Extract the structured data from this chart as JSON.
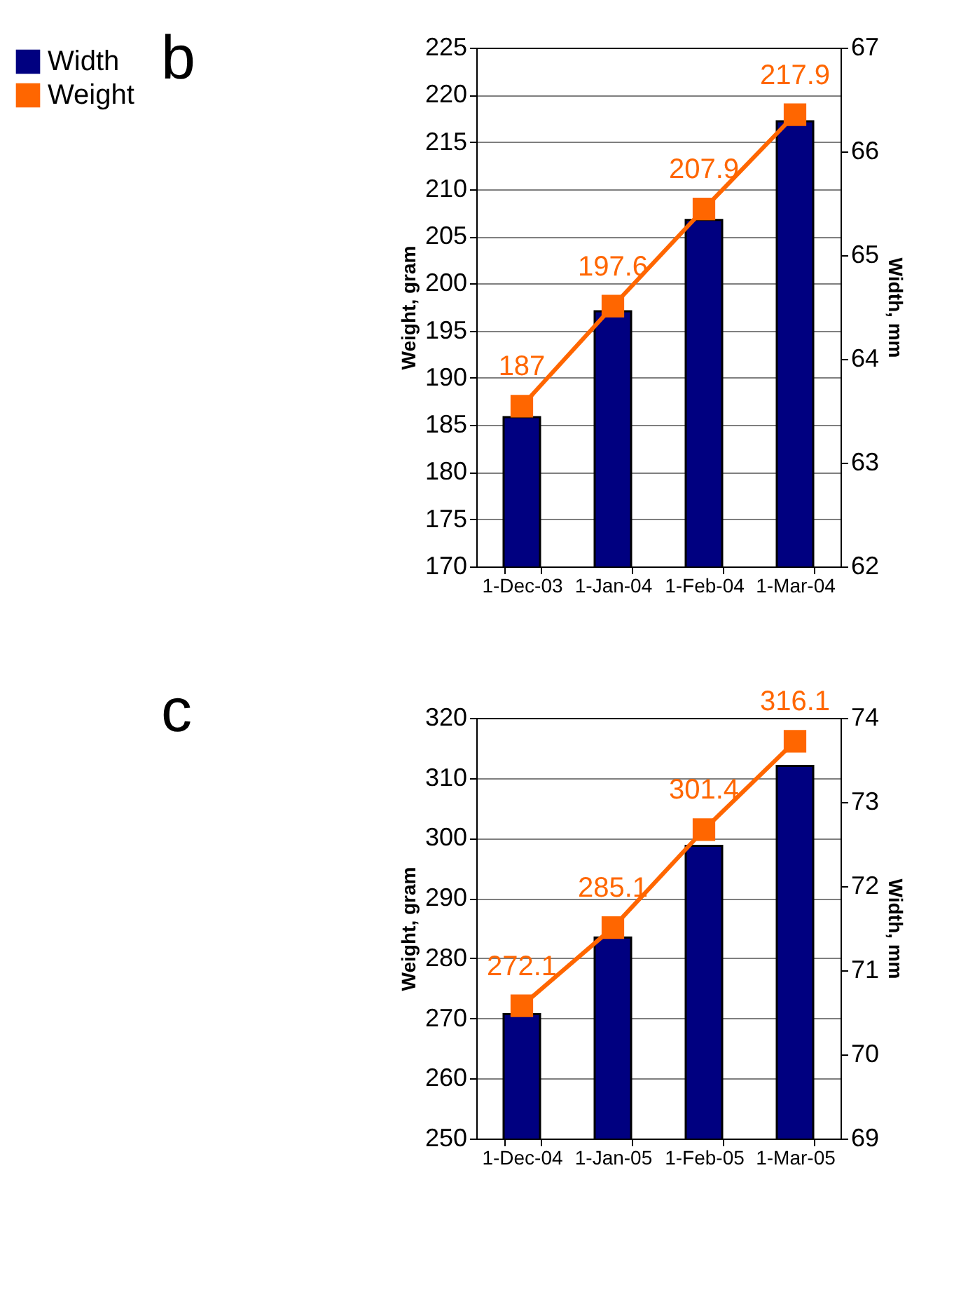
{
  "chart_data": [
    {
      "type": "bar",
      "title": "b",
      "categories": [
        "1-Dec-03",
        "1-Jan-04",
        "1-Feb-04",
        "1-Mar-04"
      ],
      "ylabel": "Weight, gram",
      "y2label": "Width, mm",
      "ylim": [
        170,
        225
      ],
      "yticks": [
        170,
        175,
        180,
        185,
        190,
        195,
        200,
        205,
        210,
        215,
        220,
        225
      ],
      "y2lim": [
        62,
        67
      ],
      "y2ticks": [
        62,
        63,
        64,
        65,
        66,
        67
      ],
      "grid": "y",
      "legend": "left",
      "series": [
        {
          "name": "Width",
          "axis": "y2",
          "color": "#000080",
          "values": [
            63.44,
            64.46,
            65.34,
            66.29
          ]
        },
        {
          "name": "Weight",
          "type": "line",
          "color": "#ff6600",
          "marker": "square",
          "values": [
            187,
            197.6,
            207.9,
            217.9
          ],
          "value_labels": [
            "187",
            "197.6",
            "207.9",
            "217.9"
          ]
        }
      ]
    },
    {
      "type": "bar",
      "title": "c",
      "categories": [
        "1-Dec-04",
        "1-Jan-05",
        "1-Feb-05",
        "1-Mar-05"
      ],
      "ylabel": "Weight, gram",
      "y2label": "Width, mm",
      "ylim": [
        250,
        320
      ],
      "yticks": [
        250,
        260,
        270,
        280,
        290,
        300,
        310,
        320
      ],
      "y2lim": [
        69,
        74
      ],
      "y2ticks": [
        69,
        70,
        71,
        72,
        73,
        74
      ],
      "grid": "y",
      "legend": "left",
      "series": [
        {
          "name": "Width",
          "axis": "y2",
          "color": "#000080",
          "values": [
            70.48,
            71.39,
            72.48,
            73.43
          ]
        },
        {
          "name": "Weight",
          "type": "line",
          "color": "#ff6600",
          "marker": "square",
          "values": [
            272.1,
            285.1,
            301.4,
            316.1
          ],
          "value_labels": [
            "272.1",
            "285.1",
            "301.4",
            "316.1"
          ]
        }
      ]
    }
  ]
}
